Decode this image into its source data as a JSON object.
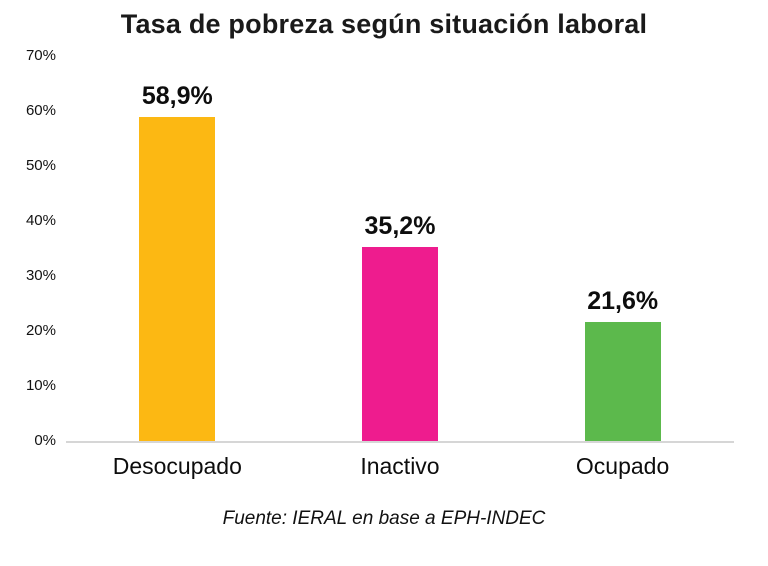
{
  "chart_data": {
    "type": "bar",
    "title": "Tasa de pobreza según situación laboral",
    "categories": [
      "Desocupado",
      "Inactivo",
      "Ocupado"
    ],
    "values": [
      58.9,
      35.2,
      21.6
    ],
    "value_labels": [
      "58,9%",
      "35,2%",
      "21,6%"
    ],
    "colors": [
      "#FCB813",
      "#EE1C8E",
      "#5CB94C"
    ],
    "y_ticks": [
      "70%",
      "60%",
      "50%",
      "40%",
      "30%",
      "20%",
      "10%",
      "0%"
    ],
    "ylim": [
      0,
      70
    ],
    "xlabel": "",
    "ylabel": "",
    "grid": false,
    "legend": "none",
    "source": "Fuente: IERAL en base a EPH-INDEC"
  }
}
